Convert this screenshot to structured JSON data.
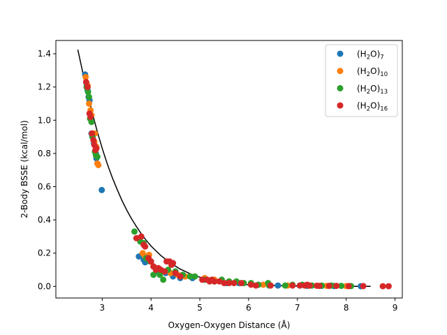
{
  "chart_data": {
    "type": "scatter",
    "title": "",
    "xlabel": "Oxygen-Oxygen Distance (Å)",
    "ylabel": "2-Body BSSE (kcal/mol)",
    "xlim": [
      2.05,
      9.15
    ],
    "ylim": [
      -0.07,
      1.48
    ],
    "xticks": [
      3,
      4,
      5,
      6,
      7,
      8,
      9
    ],
    "yticks": [
      0.0,
      0.2,
      0.4,
      0.6,
      0.8,
      1.0,
      1.2,
      1.4
    ],
    "grid": false,
    "legend_position": "top-right",
    "series": [
      {
        "name": "(H2O)7",
        "name_parts": [
          "(H",
          "2",
          "O)",
          "7"
        ],
        "color": "#1f77b4",
        "points": [
          [
            2.65,
            1.275
          ],
          [
            2.68,
            1.22
          ],
          [
            2.7,
            1.18
          ],
          [
            2.72,
            1.14
          ],
          [
            2.74,
            1.12
          ],
          [
            2.76,
            1.03
          ],
          [
            2.78,
            0.92
          ],
          [
            2.8,
            0.9
          ],
          [
            2.83,
            0.86
          ],
          [
            2.87,
            0.8
          ],
          [
            2.88,
            0.77
          ],
          [
            2.99,
            0.58
          ],
          [
            3.75,
            0.18
          ],
          [
            3.85,
            0.16
          ],
          [
            3.88,
            0.145
          ],
          [
            4.05,
            0.12
          ],
          [
            4.15,
            0.09
          ],
          [
            4.3,
            0.08
          ],
          [
            4.45,
            0.06
          ],
          [
            4.6,
            0.05
          ],
          [
            4.85,
            0.05
          ],
          [
            5.3,
            0.03
          ],
          [
            5.55,
            0.02
          ],
          [
            5.8,
            0.02
          ],
          [
            6.2,
            0.01
          ],
          [
            6.6,
            0.005
          ],
          [
            7.05,
            0.005
          ],
          [
            7.2,
            0.003
          ],
          [
            7.5,
            0.003
          ],
          [
            7.75,
            0.002
          ],
          [
            8.3,
            0.001
          ]
        ]
      },
      {
        "name": "(H2O)10",
        "name_parts": [
          "(H",
          "2",
          "O)",
          "10"
        ],
        "color": "#ff7f0e",
        "points": [
          [
            2.66,
            1.26
          ],
          [
            2.7,
            1.21
          ],
          [
            2.73,
            1.1
          ],
          [
            2.76,
            1.06
          ],
          [
            2.78,
            1.03
          ],
          [
            2.8,
            0.92
          ],
          [
            2.84,
            0.87
          ],
          [
            2.85,
            0.92
          ],
          [
            2.88,
            0.84
          ],
          [
            2.9,
            0.74
          ],
          [
            2.92,
            0.73
          ],
          [
            3.72,
            0.29
          ],
          [
            3.83,
            0.2
          ],
          [
            3.88,
            0.18
          ],
          [
            3.96,
            0.19
          ],
          [
            4.05,
            0.12
          ],
          [
            4.15,
            0.1
          ],
          [
            4.25,
            0.09
          ],
          [
            4.4,
            0.08
          ],
          [
            4.55,
            0.07
          ],
          [
            4.7,
            0.06
          ],
          [
            5.1,
            0.05
          ],
          [
            5.3,
            0.04
          ],
          [
            5.6,
            0.03
          ],
          [
            5.9,
            0.02
          ],
          [
            6.3,
            0.01
          ],
          [
            6.8,
            0.005
          ],
          [
            7.25,
            0.004
          ],
          [
            7.6,
            0.003
          ],
          [
            8.0,
            0.002
          ]
        ]
      },
      {
        "name": "(H2O)13",
        "name_parts": [
          "(H",
          "2",
          "O)",
          "13"
        ],
        "color": "#2ca02c",
        "points": [
          [
            2.68,
            1.2
          ],
          [
            2.71,
            1.17
          ],
          [
            2.73,
            1.14
          ],
          [
            2.75,
            1.01
          ],
          [
            2.78,
            0.99
          ],
          [
            2.8,
            0.9
          ],
          [
            2.85,
            0.81
          ],
          [
            2.87,
            0.79
          ],
          [
            2.9,
            0.78
          ],
          [
            3.66,
            0.33
          ],
          [
            3.78,
            0.27
          ],
          [
            3.85,
            0.26
          ],
          [
            3.9,
            0.17
          ],
          [
            3.98,
            0.15
          ],
          [
            4.05,
            0.07
          ],
          [
            4.12,
            0.1
          ],
          [
            4.18,
            0.07
          ],
          [
            4.25,
            0.04
          ],
          [
            4.35,
            0.1
          ],
          [
            4.5,
            0.09
          ],
          [
            4.65,
            0.07
          ],
          [
            4.8,
            0.06
          ],
          [
            4.9,
            0.06
          ],
          [
            5.1,
            0.04
          ],
          [
            5.3,
            0.03
          ],
          [
            5.45,
            0.04
          ],
          [
            5.6,
            0.03
          ],
          [
            5.75,
            0.03
          ],
          [
            5.9,
            0.02
          ],
          [
            6.05,
            0.02
          ],
          [
            6.2,
            0.01
          ],
          [
            6.4,
            0.02
          ],
          [
            6.42,
            0.005
          ],
          [
            6.75,
            0.005
          ],
          [
            6.9,
            0.01
          ],
          [
            7.1,
            0.01
          ],
          [
            7.3,
            0.005
          ],
          [
            7.5,
            0.005
          ],
          [
            7.7,
            0.005
          ],
          [
            7.9,
            0.003
          ],
          [
            8.1,
            0.002
          ]
        ]
      },
      {
        "name": "(H2O)16",
        "name_parts": [
          "(H",
          "2",
          "O)",
          "16"
        ],
        "color": "#d62728",
        "points": [
          [
            2.67,
            1.23
          ],
          [
            2.7,
            1.2
          ],
          [
            2.74,
            1.04
          ],
          [
            2.76,
            1.02
          ],
          [
            2.79,
            0.92
          ],
          [
            2.82,
            0.88
          ],
          [
            2.84,
            0.85
          ],
          [
            2.86,
            0.82
          ],
          [
            2.88,
            0.83
          ],
          [
            3.7,
            0.29
          ],
          [
            3.8,
            0.3
          ],
          [
            3.85,
            0.25
          ],
          [
            3.88,
            0.24
          ],
          [
            3.95,
            0.17
          ],
          [
            4.0,
            0.15
          ],
          [
            4.05,
            0.12
          ],
          [
            4.1,
            0.1
          ],
          [
            4.15,
            0.11
          ],
          [
            4.2,
            0.1
          ],
          [
            4.28,
            0.09
          ],
          [
            4.32,
            0.15
          ],
          [
            4.38,
            0.15
          ],
          [
            4.42,
            0.13
          ],
          [
            4.45,
            0.14
          ],
          [
            4.5,
            0.08
          ],
          [
            4.6,
            0.06
          ],
          [
            5.05,
            0.04
          ],
          [
            5.15,
            0.04
          ],
          [
            5.2,
            0.03
          ],
          [
            5.25,
            0.04
          ],
          [
            5.3,
            0.03
          ],
          [
            5.4,
            0.03
          ],
          [
            5.5,
            0.02
          ],
          [
            5.6,
            0.02
          ],
          [
            5.7,
            0.02
          ],
          [
            5.85,
            0.02
          ],
          [
            6.05,
            0.01
          ],
          [
            6.15,
            0.005
          ],
          [
            6.45,
            0.005
          ],
          [
            6.9,
            0.005
          ],
          [
            7.05,
            0.005
          ],
          [
            7.15,
            0.005
          ],
          [
            7.2,
            0.01
          ],
          [
            7.25,
            0.005
          ],
          [
            7.4,
            0.004
          ],
          [
            7.45,
            0.003
          ],
          [
            7.65,
            0.003
          ],
          [
            7.8,
            0.003
          ],
          [
            8.05,
            0.002
          ],
          [
            8.35,
            0.002
          ],
          [
            8.75,
            0.001
          ],
          [
            8.87,
            0.001
          ]
        ]
      }
    ],
    "fit_line": {
      "color": "#000000",
      "points": [
        [
          2.5,
          1.425
        ],
        [
          2.6,
          1.29
        ],
        [
          2.7,
          1.165
        ],
        [
          2.8,
          1.04
        ],
        [
          2.9,
          0.93
        ],
        [
          3.0,
          0.83
        ],
        [
          3.1,
          0.74
        ],
        [
          3.2,
          0.66
        ],
        [
          3.3,
          0.588
        ],
        [
          3.4,
          0.52
        ],
        [
          3.5,
          0.46
        ],
        [
          3.6,
          0.407
        ],
        [
          3.7,
          0.36
        ],
        [
          3.8,
          0.316
        ],
        [
          3.9,
          0.278
        ],
        [
          4.0,
          0.243
        ],
        [
          4.2,
          0.186
        ],
        [
          4.4,
          0.14
        ],
        [
          4.6,
          0.104
        ],
        [
          4.8,
          0.076
        ],
        [
          5.0,
          0.055
        ],
        [
          5.25,
          0.036
        ],
        [
          5.5,
          0.023
        ],
        [
          5.75,
          0.015
        ],
        [
          6.0,
          0.01
        ],
        [
          6.5,
          0.005
        ],
        [
          7.0,
          0.002
        ],
        [
          7.5,
          0.001
        ],
        [
          8.0,
          0.0005
        ],
        [
          8.5,
          0.0003
        ]
      ]
    }
  }
}
